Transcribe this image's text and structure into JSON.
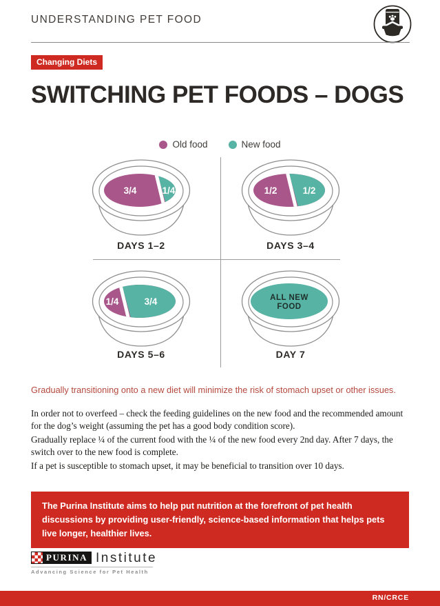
{
  "colors": {
    "brand_red": "#cf2a21",
    "highlight_red": "#b5493e",
    "old_food": "#a9568b",
    "new_food": "#57b3a3",
    "ink": "#2d2926",
    "line_gray": "#9b9b9b"
  },
  "header": {
    "title": "UNDERSTANDING PET FOOD",
    "icon": "pet-food-bag-and-bowl"
  },
  "badge": {
    "label": "Changing Diets"
  },
  "page_title": "SWITCHING PET FOODS – DOGS",
  "legend": {
    "old_label": "Old food",
    "new_label": "New food"
  },
  "diagram": {
    "bowls": [
      {
        "label": "DAYS 1–2",
        "portions": [
          {
            "food": "old",
            "value": "3/4",
            "fraction": 0.75
          },
          {
            "food": "new",
            "value": "1/4",
            "fraction": 0.25
          }
        ]
      },
      {
        "label": "DAYS 3–4",
        "portions": [
          {
            "food": "old",
            "value": "1/2",
            "fraction": 0.5
          },
          {
            "food": "new",
            "value": "1/2",
            "fraction": 0.5
          }
        ]
      },
      {
        "label": "DAYS 5–6",
        "portions": [
          {
            "food": "old",
            "value": "1/4",
            "fraction": 0.25
          },
          {
            "food": "new",
            "value": "3/4",
            "fraction": 0.75
          }
        ]
      },
      {
        "label": "DAY 7",
        "portions": [
          {
            "food": "new",
            "value": "ALL NEW FOOD",
            "fraction": 1.0
          }
        ],
        "label_lines": [
          "ALL NEW",
          "FOOD"
        ]
      }
    ]
  },
  "body": {
    "highlight": "Gradually transitioning onto a new diet will minimize the risk of stomach upset or other issues.",
    "paragraphs": [
      "In order not to overfeed – check the feeding guidelines on the new food and the recommended amount for the dog’s weight (assuming the pet has a good body condition score).",
      "Gradually replace ¼ of the current food with the ¼ of the new food every 2nd day. After 7 days, the switch over to the new food is complete.",
      "If a pet is susceptible to stomach upset, it may be beneficial to transition over 10 days."
    ]
  },
  "callout": {
    "text": "The Purina Institute aims to help put nutrition at the forefront of pet health discussions by providing user-friendly, science-based information that helps pets live longer, healthier lives."
  },
  "logo": {
    "brand": "PURINA",
    "suffix": "Institute",
    "tagline": "Advancing Science for Pet Health"
  },
  "footer": {
    "code": "RN/CRCE"
  }
}
